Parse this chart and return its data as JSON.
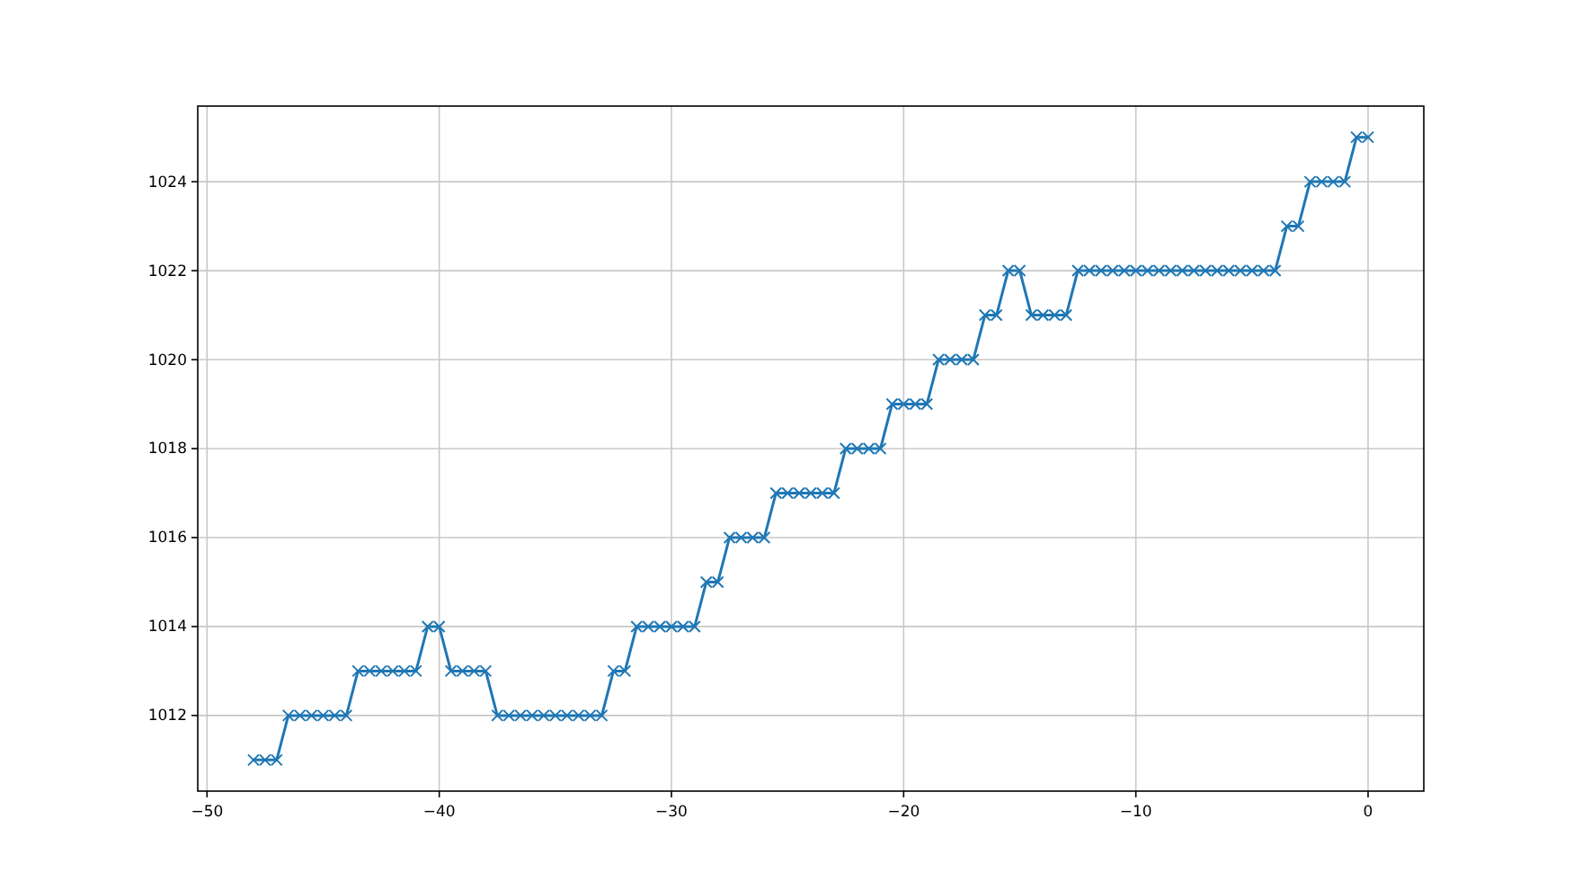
{
  "chart_data": {
    "type": "line",
    "x": [
      -48,
      -47.5,
      -47,
      -46.5,
      -46,
      -45.5,
      -45,
      -44.5,
      -44,
      -43.5,
      -43,
      -42.5,
      -42,
      -41.5,
      -41,
      -40.5,
      -40,
      -39.5,
      -39,
      -38.5,
      -38,
      -37.5,
      -37,
      -36.5,
      -36,
      -35.5,
      -35,
      -34.5,
      -34,
      -33.5,
      -33,
      -32.5,
      -32,
      -31.5,
      -31,
      -30.5,
      -30,
      -29.5,
      -29,
      -28.5,
      -28,
      -27.5,
      -27,
      -26.5,
      -26,
      -25.5,
      -25,
      -24.5,
      -24,
      -23.5,
      -23,
      -22.5,
      -22,
      -21.5,
      -21,
      -20.5,
      -20,
      -19.5,
      -19,
      -18.5,
      -18,
      -17.5,
      -17,
      -16.5,
      -16,
      -15.5,
      -15,
      -14.5,
      -14,
      -13.5,
      -13,
      -12.5,
      -12,
      -11.5,
      -11,
      -10.5,
      -10,
      -9.5,
      -9,
      -8.5,
      -8,
      -7.5,
      -7,
      -6.5,
      -6,
      -5.5,
      -5,
      -4.5,
      -4,
      -3.5,
      -3,
      -2.5,
      -2,
      -1.5,
      -1,
      -0.5,
      0
    ],
    "series": [
      {
        "color": "#1f77b4",
        "values": [
          1011,
          1011,
          1011,
          1012,
          1012,
          1012,
          1012,
          1012,
          1012,
          1013,
          1013,
          1013,
          1013,
          1013,
          1013,
          1014,
          1014,
          1013,
          1013,
          1013,
          1013,
          1012,
          1012,
          1012,
          1012,
          1012,
          1012,
          1012,
          1012,
          1012,
          1012,
          1013,
          1013,
          1014,
          1014,
          1014,
          1014,
          1014,
          1014,
          1015,
          1015,
          1016,
          1016,
          1016,
          1016,
          1017,
          1017,
          1017,
          1017,
          1017,
          1017,
          1018,
          1018,
          1018,
          1018,
          1019,
          1019,
          1019,
          1019,
          1020,
          1020,
          1020,
          1020,
          1021,
          1021,
          1022,
          1022,
          1021,
          1021,
          1021,
          1021,
          1022,
          1022,
          1022,
          1022,
          1022,
          1022,
          1022,
          1022,
          1022,
          1022,
          1022,
          1022,
          1022,
          1022,
          1022,
          1022,
          1022,
          1022,
          1023,
          1023,
          1024,
          1024,
          1024,
          1024,
          1025,
          1025
        ]
      }
    ],
    "xlim": [
      -50.4,
      2.4
    ],
    "xticks": [
      -50,
      -40,
      -30,
      -20,
      -10,
      0
    ],
    "ylim": [
      1010.3,
      1025.7
    ],
    "yticks": [
      1012,
      1014,
      1016,
      1018,
      1020,
      1022,
      1024
    ],
    "grid": true,
    "marker": "cross",
    "line_style": "solid"
  }
}
